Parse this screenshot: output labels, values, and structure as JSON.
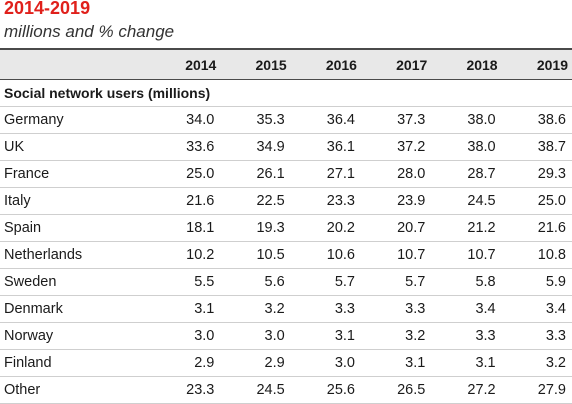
{
  "header": {
    "title": "2014-2019",
    "subtitle": "millions and % change"
  },
  "chart_data": {
    "type": "table",
    "columns": [
      "2014",
      "2015",
      "2016",
      "2017",
      "2018",
      "2019"
    ],
    "section_label": "Social network users (millions)",
    "rows": [
      {
        "label": "Germany",
        "values": [
          "34.0",
          "35.3",
          "36.4",
          "37.3",
          "38.0",
          "38.6"
        ]
      },
      {
        "label": "UK",
        "values": [
          "33.6",
          "34.9",
          "36.1",
          "37.2",
          "38.0",
          "38.7"
        ]
      },
      {
        "label": "France",
        "values": [
          "25.0",
          "26.1",
          "27.1",
          "28.0",
          "28.7",
          "29.3"
        ]
      },
      {
        "label": "Italy",
        "values": [
          "21.6",
          "22.5",
          "23.3",
          "23.9",
          "24.5",
          "25.0"
        ]
      },
      {
        "label": "Spain",
        "values": [
          "18.1",
          "19.3",
          "20.2",
          "20.7",
          "21.2",
          "21.6"
        ]
      },
      {
        "label": "Netherlands",
        "values": [
          "10.2",
          "10.5",
          "10.6",
          "10.7",
          "10.7",
          "10.8"
        ]
      },
      {
        "label": "Sweden",
        "values": [
          "5.5",
          "5.6",
          "5.7",
          "5.7",
          "5.8",
          "5.9"
        ]
      },
      {
        "label": "Denmark",
        "values": [
          "3.1",
          "3.2",
          "3.3",
          "3.3",
          "3.4",
          "3.4"
        ]
      },
      {
        "label": "Norway",
        "values": [
          "3.0",
          "3.0",
          "3.1",
          "3.2",
          "3.3",
          "3.3"
        ]
      },
      {
        "label": "Finland",
        "values": [
          "2.9",
          "2.9",
          "3.0",
          "3.1",
          "3.1",
          "3.2"
        ]
      },
      {
        "label": "Other",
        "values": [
          "23.3",
          "24.5",
          "25.6",
          "26.5",
          "27.2",
          "27.9"
        ]
      }
    ]
  },
  "colors": {
    "title": "#e0201b",
    "header_bg": "#e8e8e8",
    "rule": "#cfcfcf"
  }
}
